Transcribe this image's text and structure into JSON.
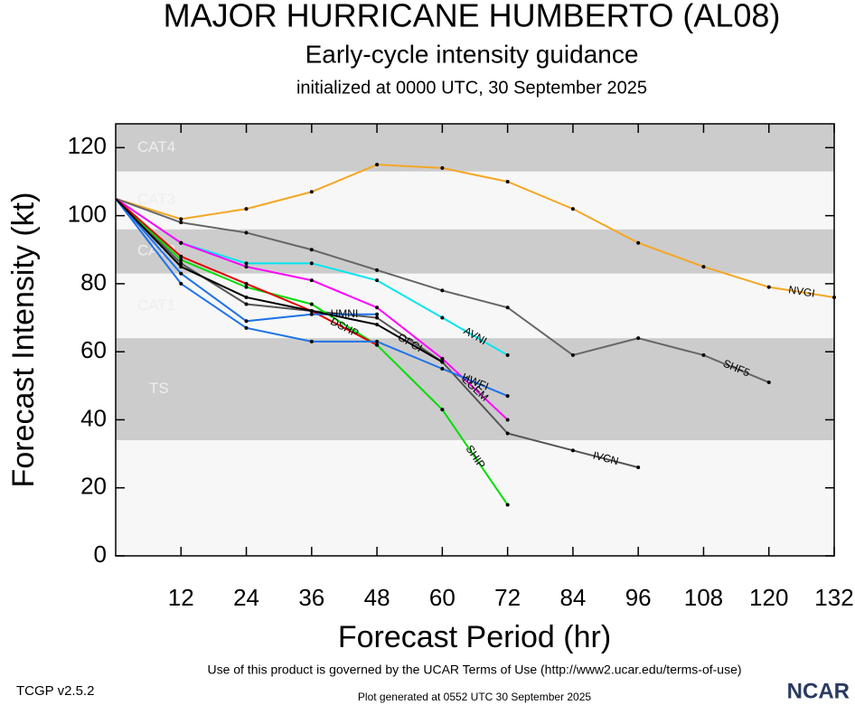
{
  "chart_data": {
    "type": "line",
    "title": "MAJOR HURRICANE HUMBERTO (AL08)",
    "subtitle": "Early-cycle intensity guidance",
    "subtitle2": "initialized at 0000 UTC, 30 September 2025",
    "x_label": "Forecast Period (hr)",
    "y_label": "Forecast Intensity (kt)",
    "footer": "Use of this product is governed by the UCAR Terms of Use (http://www2.ucar.edu/terms-of-use)",
    "version": "TCGP v2.5.2",
    "generated": "Plot generated at 0552 UTC   30 September 2025",
    "logo": "NCAR",
    "xlim": [
      0,
      132
    ],
    "xticks": [
      12,
      24,
      36,
      48,
      60,
      72,
      84,
      96,
      108,
      120,
      132
    ],
    "ylim": [
      0,
      127
    ],
    "yticks": [
      0,
      20,
      40,
      60,
      80,
      100,
      120
    ],
    "bands": [
      {
        "label": "TS",
        "range": [
          34,
          64
        ],
        "color": "#cccccc"
      },
      {
        "label": "CAT1",
        "range": [
          64,
          83
        ],
        "color": "#f7f7f7"
      },
      {
        "label": "CAT2",
        "range": [
          83,
          96
        ],
        "color": "#cccccc"
      },
      {
        "label": "CAT3",
        "range": [
          96,
          113
        ],
        "color": "#f7f7f7"
      },
      {
        "label": "CAT4",
        "range": [
          113,
          127
        ],
        "color": "#cccccc"
      }
    ],
    "x": [
      0,
      12,
      24,
      36,
      48,
      60,
      72,
      84,
      96,
      108,
      120,
      132
    ],
    "series": [
      {
        "name": "NVGI",
        "color": "#f5a623",
        "values": [
          105,
          99,
          102,
          107,
          115,
          114,
          110,
          102,
          92,
          85,
          79,
          76
        ]
      },
      {
        "name": "SHF5",
        "color": "#666666",
        "values": [
          105,
          98,
          95,
          90,
          84,
          78,
          73,
          59,
          64,
          59,
          51,
          null
        ]
      },
      {
        "name": "IVCN",
        "color": "#555555",
        "values": [
          105,
          86,
          74,
          72,
          70,
          57,
          36,
          31,
          26,
          null,
          null,
          null
        ]
      },
      {
        "name": "AVNI",
        "color": "#00e5ee",
        "values": [
          105,
          92,
          86,
          86,
          81,
          70,
          59,
          null,
          null,
          null,
          null,
          null
        ]
      },
      {
        "name": "LGEM",
        "color": "#ff00ff",
        "values": [
          105,
          92,
          85,
          81,
          73,
          58,
          40,
          null,
          null,
          null,
          null,
          null
        ]
      },
      {
        "name": "SHIP",
        "color": "#00dd00",
        "values": [
          105,
          87,
          79,
          74,
          62,
          43,
          15,
          null,
          null,
          null,
          null,
          null
        ]
      },
      {
        "name": "DSHP",
        "color": "#e00000",
        "values": [
          105,
          88,
          80,
          72,
          62,
          null,
          null,
          null,
          null,
          null,
          null,
          null
        ]
      },
      {
        "name": "HWFI",
        "color": "#1e73e8",
        "values": [
          105,
          80,
          67,
          63,
          63,
          55,
          47,
          null,
          null,
          null,
          null,
          null
        ]
      },
      {
        "name": "HMNI",
        "color": "#1e73e8",
        "values": [
          105,
          83,
          69,
          71,
          71,
          null,
          null,
          null,
          null,
          null,
          null,
          null
        ]
      },
      {
        "name": "OFCI",
        "color": "#000000",
        "values": [
          105,
          85,
          76,
          72,
          68,
          57,
          null,
          null,
          null,
          null,
          null,
          null
        ]
      }
    ]
  }
}
